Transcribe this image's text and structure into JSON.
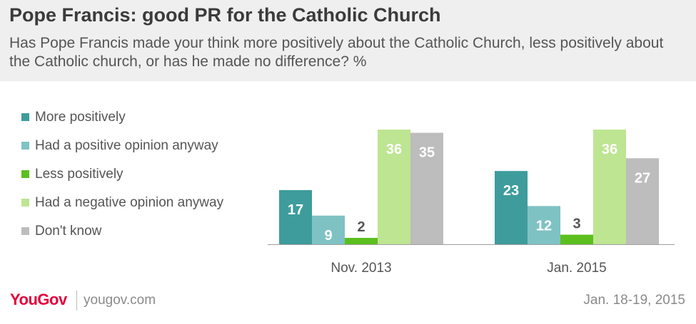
{
  "title": "Pope Francis: good PR for the Catholic Church",
  "subtitle": "Has Pope Francis made your think more positively about the Catholic Church, less positively about the Catholic church, or has he made no difference? %",
  "chart_data": {
    "type": "bar",
    "categories": [
      "Nov. 2013",
      "Jan. 2015"
    ],
    "series": [
      {
        "name": "More positively",
        "values": [
          17,
          23
        ],
        "color": "#3e9c9c"
      },
      {
        "name": "Had a positive opinion anyway",
        "values": [
          9,
          12
        ],
        "color": "#7fc2c4"
      },
      {
        "name": "Less positively",
        "values": [
          2,
          3
        ],
        "color": "#5cbf1d"
      },
      {
        "name": "Had a negative opinion anyway",
        "values": [
          36,
          36
        ],
        "color": "#bde592"
      },
      {
        "name": "Don't know",
        "values": [
          35,
          27
        ],
        "color": "#bdbdbd"
      }
    ],
    "ylim": [
      0,
      36
    ],
    "legend_position": "left",
    "grid": false
  },
  "footer": {
    "logo": "YouGov",
    "site": "yougov.com",
    "date": "Jan. 18-19, 2015"
  }
}
